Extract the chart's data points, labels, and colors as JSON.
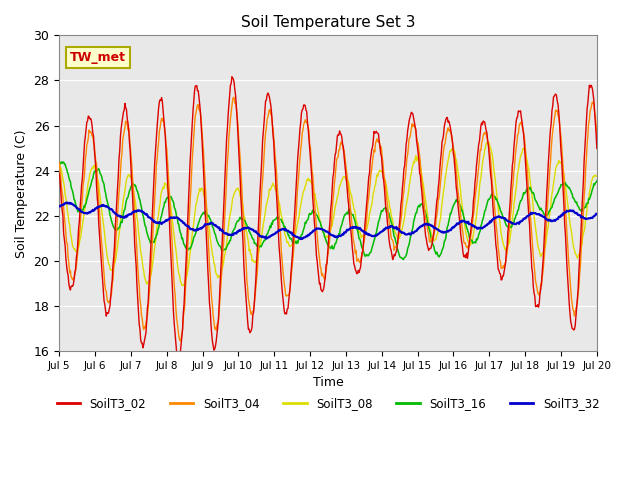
{
  "title": "Soil Temperature Set 3",
  "xlabel": "Time",
  "ylabel": "Soil Temperature (C)",
  "ylim": [
    16,
    30
  ],
  "series": {
    "SoilT3_02": {
      "color": "#dd0000",
      "lw": 1.2
    },
    "SoilT3_04": {
      "color": "#ff8800",
      "lw": 1.2
    },
    "SoilT3_08": {
      "color": "#dddd00",
      "lw": 1.2
    },
    "SoilT3_16": {
      "color": "#00bb00",
      "lw": 1.2
    },
    "SoilT3_32": {
      "color": "#0000cc",
      "lw": 1.5
    }
  },
  "annotation": {
    "text": "TW_met",
    "fontsize": 9,
    "color": "#cc0000",
    "bg": "#ffffcc",
    "border": "#aaaa00"
  },
  "background_color": "#e8e8e8",
  "yticks": [
    16,
    18,
    20,
    22,
    24,
    26,
    28,
    30
  ],
  "xtick_labels": [
    "Jul 5",
    "Jul 6",
    "Jul 7",
    "Jul 8",
    "Jul 9",
    "Jul 10",
    "Jul 11",
    "Jul 12",
    "Jul 13",
    "Jul 14",
    "Jul 15",
    "Jul 16",
    "Jul 17",
    "Jul 18",
    "Jul 19",
    "Jul 20"
  ],
  "legend_items": [
    "SoilT3_02",
    "SoilT3_04",
    "SoilT3_08",
    "SoilT3_16",
    "SoilT3_32"
  ]
}
